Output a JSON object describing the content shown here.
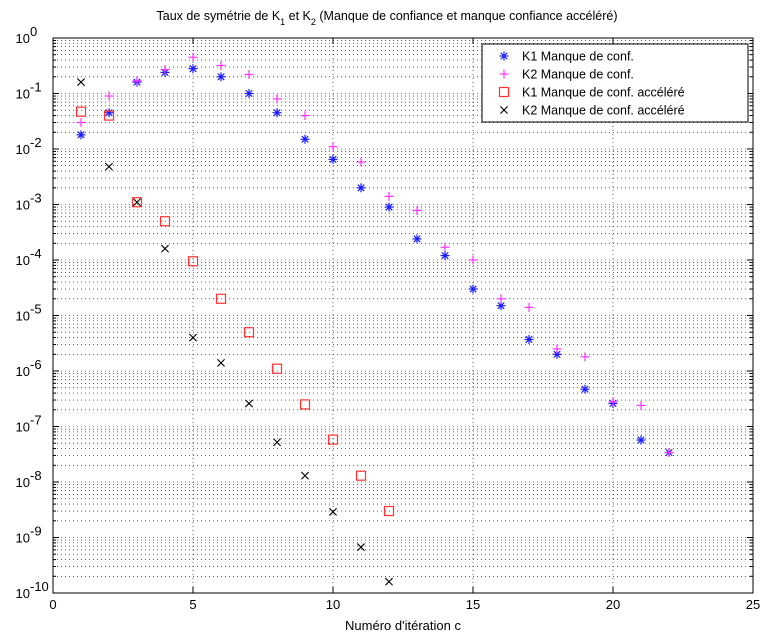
{
  "chart_data": {
    "type": "scatter",
    "title": {
      "parts": [
        {
          "text": "Taux de symétrie de K"
        },
        {
          "text": "1",
          "sub": true
        },
        {
          "text": " et K"
        },
        {
          "text": "2",
          "sub": true
        },
        {
          "text": " (Manque de confiance et manque confiance accéléré)"
        }
      ]
    },
    "xlabel": "Numéro d'itération c",
    "ylabel": "",
    "x_scale": "linear",
    "y_scale": "log",
    "xlim": [
      0,
      25
    ],
    "ylim_exponents": [
      -10,
      0
    ],
    "x_ticks": [
      0,
      5,
      10,
      15,
      20,
      25
    ],
    "y_tick_exponents": [
      0,
      -1,
      -2,
      -3,
      -4,
      -5,
      -6,
      -7,
      -8,
      -9,
      -10
    ],
    "y_tick_base": "10",
    "grid": "dotted, major and minor",
    "legend_position": "top-right",
    "series": [
      {
        "name": "K1 Manque de conf.",
        "marker": "asterisk",
        "color": "#1a1aff",
        "x": [
          1,
          2,
          3,
          4,
          5,
          6,
          7,
          8,
          9,
          10,
          11,
          12,
          13,
          14,
          15,
          16,
          17,
          18,
          19,
          20,
          21,
          22
        ],
        "y": [
          0.018,
          0.045,
          0.16,
          0.24,
          0.28,
          0.2,
          0.1,
          0.045,
          0.015,
          0.0065,
          0.002,
          0.0009,
          0.00024,
          0.00012,
          3e-05,
          1.5e-05,
          3.7e-06,
          2e-06,
          4.7e-07,
          2.6e-07,
          5.7e-08,
          3.4e-08
        ]
      },
      {
        "name": "K2 Manque de conf.",
        "marker": "plus",
        "color": "#ff33ff",
        "x": [
          1,
          2,
          3,
          4,
          5,
          6,
          7,
          8,
          9,
          10,
          11,
          12,
          13,
          14,
          15,
          16,
          17,
          18,
          19,
          20,
          21,
          22
        ],
        "y": [
          0.03,
          0.09,
          0.17,
          0.27,
          0.45,
          0.32,
          0.22,
          0.08,
          0.04,
          0.011,
          0.0058,
          0.0014,
          0.00078,
          0.00017,
          0.0001,
          2e-05,
          1.4e-05,
          2.5e-06,
          1.8e-06,
          2.8e-07,
          2.4e-07,
          3.4e-08
        ]
      },
      {
        "name": "K1 Manque de conf. accéléré",
        "marker": "square",
        "color": "#ff3333",
        "x": [
          1,
          2,
          3,
          4,
          5,
          6,
          7,
          8,
          9,
          10,
          11,
          12
        ],
        "y": [
          0.047,
          0.04,
          0.0011,
          0.0005,
          9.5e-05,
          2e-05,
          5e-06,
          1.1e-06,
          2.5e-07,
          5.8e-08,
          1.3e-08,
          3e-09
        ]
      },
      {
        "name": "K2 Manque de conf. accéléré",
        "marker": "x",
        "color": "#000000",
        "x": [
          1,
          2,
          3,
          4,
          5,
          6,
          7,
          8,
          9,
          10,
          11,
          12
        ],
        "y": [
          0.16,
          0.0048,
          0.0011,
          0.00016,
          4e-06,
          1.4e-06,
          2.6e-07,
          5.2e-08,
          1.3e-08,
          2.9e-09,
          6.7e-10,
          1.6e-10
        ]
      }
    ]
  }
}
